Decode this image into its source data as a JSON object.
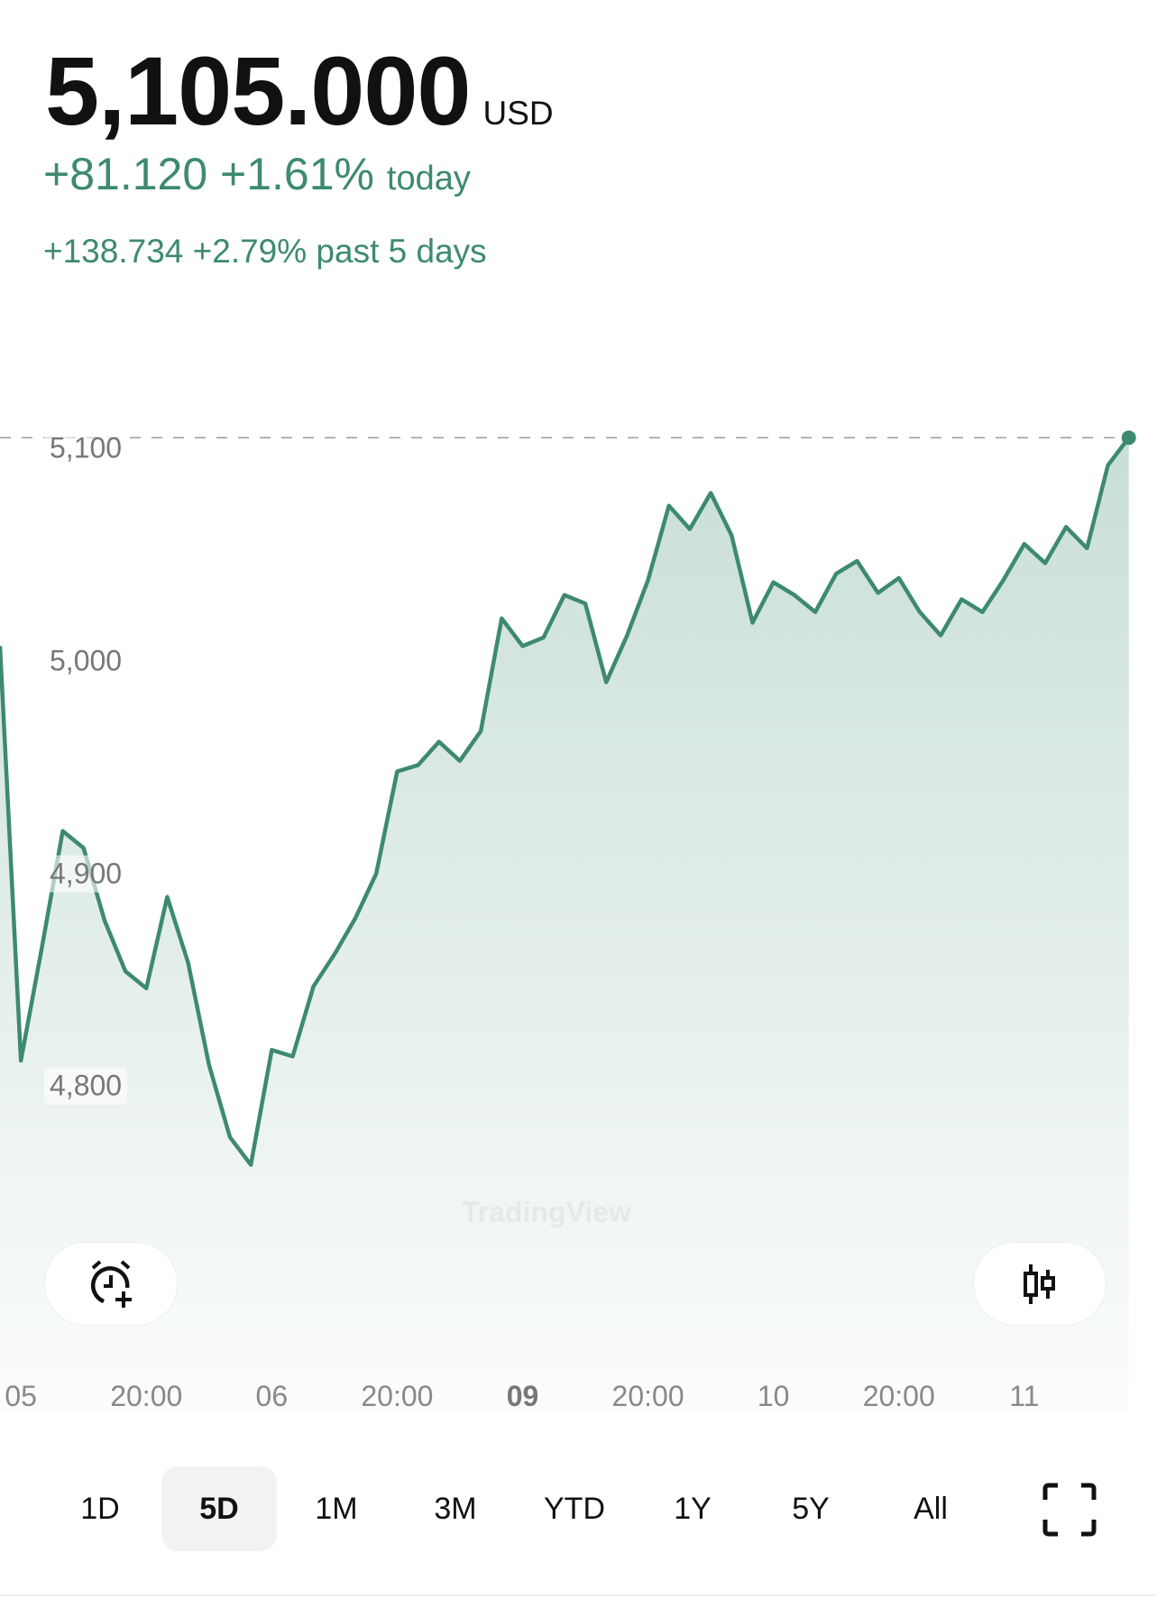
{
  "header": {
    "price": "5,105.000",
    "currency": "USD",
    "change_today": "+81.120 +1.61%",
    "today_label": "today",
    "change_period": "+138.734 +2.79% past 5 days"
  },
  "colors": {
    "accent": "#3d8a70",
    "text": "#111111",
    "axis_text": "#888888"
  },
  "watermark": "TradingView",
  "buttons": {
    "alert": "alarm-add-icon",
    "chart_type": "candlestick-icon",
    "fullscreen": "fullscreen-icon"
  },
  "timeframes": [
    "1D",
    "5D",
    "1M",
    "3M",
    "YTD",
    "1Y",
    "5Y",
    "All"
  ],
  "selected_timeframe": "5D",
  "chart_data": {
    "type": "area",
    "ylim": [
      4740,
      5110
    ],
    "y_ticks": [
      "5,100",
      "5,000",
      "4,900",
      "4,800"
    ],
    "y_tick_values": [
      5100,
      5000,
      4900,
      4800
    ],
    "x_tick_labels": [
      {
        "index": 1,
        "label": "05",
        "bold": false
      },
      {
        "index": 7,
        "label": "20:00",
        "bold": false
      },
      {
        "index": 13,
        "label": "06",
        "bold": false
      },
      {
        "index": 19,
        "label": "20:00",
        "bold": false
      },
      {
        "index": 25,
        "label": "09",
        "bold": true
      },
      {
        "index": 31,
        "label": "20:00",
        "bold": false
      },
      {
        "index": 37,
        "label": "10",
        "bold": false
      },
      {
        "index": 43,
        "label": "20:00",
        "bold": false
      },
      {
        "index": 49,
        "label": "11",
        "bold": false
      }
    ],
    "last_value": 5105,
    "values": [
      5007,
      4812,
      4865,
      4920,
      4912,
      4878,
      4854,
      4846,
      4889,
      4858,
      4810,
      4776,
      4763,
      4817,
      4814,
      4847,
      4862,
      4879,
      4900,
      4948,
      4951,
      4962,
      4953,
      4967,
      5020,
      5007,
      5011,
      5031,
      5027,
      4990,
      5012,
      5038,
      5073,
      5062,
      5079,
      5059,
      5018,
      5037,
      5031,
      5023,
      5041,
      5047,
      5032,
      5039,
      5023,
      5012,
      5029,
      5023,
      5038,
      5055,
      5046,
      5063,
      5053,
      5092,
      5105
    ]
  }
}
